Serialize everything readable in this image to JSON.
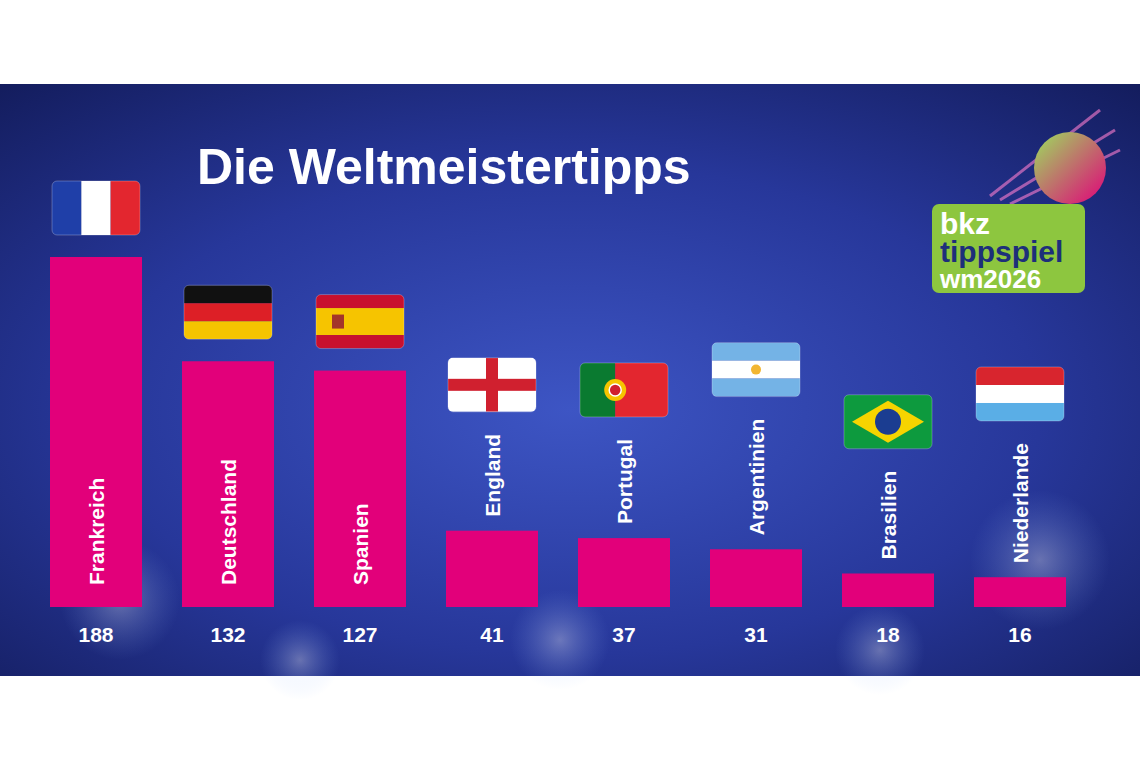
{
  "chart_data": {
    "type": "bar",
    "title": "Die Weltmeistertipps",
    "categories": [
      "Frankreich",
      "Deutschland",
      "Spanien",
      "England",
      "Portugal",
      "Argentinien",
      "Brasilien",
      "Niederlande"
    ],
    "values": [
      188,
      132,
      127,
      41,
      37,
      31,
      18,
      16
    ],
    "color": "#e2007a",
    "ylim": [
      0,
      188
    ],
    "data_labels": true,
    "tick_labels": "x",
    "grid": false,
    "annotations": [
      "bkz",
      "tippspiel",
      "wm2026"
    ]
  }
}
